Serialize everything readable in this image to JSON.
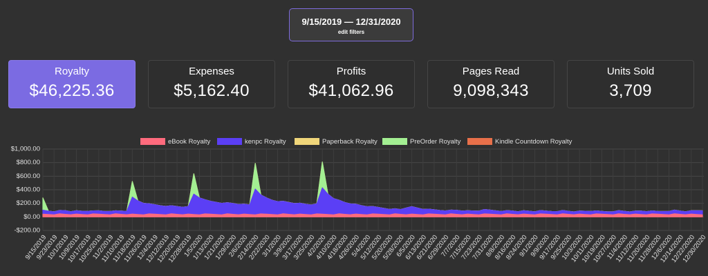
{
  "header": {
    "date_range": "9/15/2019 — 12/31/2020",
    "button": "edit filters"
  },
  "cards": [
    {
      "label": "Royalty",
      "value": "$46,225.36"
    },
    {
      "label": "Expenses",
      "value": "$5,162.40"
    },
    {
      "label": "Profits",
      "value": "$41,062.96"
    },
    {
      "label": "Pages Read",
      "value": "9,098,343"
    },
    {
      "label": "Units Sold",
      "value": "3,709"
    }
  ],
  "chart_data": {
    "type": "stacked-area",
    "grid": true,
    "legend": "top",
    "categories": [
      "9/15/2019",
      null,
      "9/23/2019",
      null,
      "10/1/2019",
      null,
      "10/9/2019",
      null,
      "10/17/2019",
      null,
      "10/25/2019",
      null,
      "11/2/2019",
      null,
      "11/10/2019",
      null,
      "11/18/2019",
      null,
      "11/26/2019",
      null,
      "12/4/2019",
      null,
      "12/12/2019",
      null,
      "12/20/2019",
      null,
      "12/28/2019",
      null,
      "1/5/2020",
      null,
      "1/13/2020",
      null,
      "1/21/2020",
      null,
      "1/29/2020",
      null,
      "2/6/2020",
      null,
      "2/14/2020",
      null,
      "2/22/2020",
      null,
      "3/1/2020",
      null,
      "3/9/2020",
      null,
      "3/17/2020",
      null,
      "3/25/2020",
      null,
      "4/2/2020",
      null,
      "4/10/2020",
      null,
      "4/18/2020",
      null,
      "4/26/2020",
      null,
      "5/4/2020",
      null,
      "5/12/2020",
      null,
      "5/20/2020",
      null,
      "5/28/2020",
      null,
      "6/5/2020",
      null,
      "6/13/2020",
      null,
      "6/21/2020",
      null,
      "6/29/2020",
      null,
      "7/7/2020",
      null,
      "7/15/2020",
      null,
      "7/23/2020",
      null,
      "7/31/2020",
      null,
      "8/8/2020",
      null,
      "8/16/2020",
      null,
      "8/24/2020",
      null,
      "9/1/2020",
      null,
      "9/9/2020",
      null,
      "9/17/2020",
      null,
      "9/25/2020",
      null,
      "10/3/2020",
      null,
      "10/11/2020",
      null,
      "10/19/2020",
      null,
      "10/27/2020",
      null,
      "11/4/2020",
      null,
      "11/12/2020",
      null,
      "11/20/2020",
      null,
      "11/28/2020",
      null,
      "12/6/2020",
      null,
      "12/14/2020",
      null,
      "12/22/2020",
      null,
      "12/30/2020"
    ],
    "ylim": [
      -200,
      1000
    ],
    "yticks": [
      {
        "value": -200,
        "label": "-$200.00"
      },
      {
        "value": 0,
        "label": "$0.00"
      },
      {
        "value": 200,
        "label": "$200.00"
      },
      {
        "value": 400,
        "label": "$400.00"
      },
      {
        "value": 600,
        "label": "$600.00"
      },
      {
        "value": 800,
        "label": "$800.00"
      },
      {
        "value": 1000,
        "label": "$1,000.00"
      }
    ],
    "series": [
      {
        "name": "eBook Royalty",
        "color": "#ff6b7d",
        "values": [
          40,
          35,
          30,
          45,
          38,
          32,
          42,
          36,
          30,
          44,
          40,
          35,
          30,
          45,
          38,
          32,
          42,
          36,
          30,
          44,
          40,
          35,
          30,
          45,
          38,
          32,
          42,
          36,
          30,
          44,
          40,
          35,
          30,
          45,
          38,
          32,
          42,
          36,
          30,
          44,
          40,
          35,
          30,
          45,
          38,
          32,
          42,
          36,
          30,
          44,
          40,
          35,
          30,
          45,
          38,
          32,
          42,
          36,
          30,
          44,
          40,
          35,
          30,
          45,
          38,
          32,
          42,
          36,
          30,
          44,
          40,
          35,
          30,
          45,
          38,
          32,
          42,
          36,
          30,
          44,
          40,
          35,
          30,
          45,
          38,
          32,
          42,
          36,
          30,
          44,
          40,
          35,
          30,
          45,
          38,
          32,
          42,
          36,
          30,
          44,
          40,
          35,
          30,
          45,
          38,
          32,
          42,
          36,
          30,
          44,
          40,
          35,
          30,
          45,
          38,
          32,
          42,
          36,
          30
        ]
      },
      {
        "name": "kenpc Royalty",
        "color": "#5b3ff5",
        "values": [
          60,
          50,
          45,
          50,
          55,
          45,
          50,
          48,
          52,
          45,
          50,
          47,
          50,
          45,
          48,
          50,
          250,
          200,
          170,
          150,
          140,
          130,
          125,
          120,
          115,
          110,
          110,
          300,
          250,
          210,
          190,
          180,
          170,
          165,
          160,
          150,
          145,
          140,
          380,
          280,
          240,
          210,
          195,
          185,
          175,
          165,
          160,
          150,
          145,
          150,
          390,
          300,
          240,
          200,
          175,
          160,
          145,
          130,
          120,
          110,
          100,
          90,
          80,
          75,
          70,
          100,
          110,
          95,
          80,
          70,
          65,
          60,
          58,
          55,
          60,
          55,
          50,
          52,
          55,
          65,
          60,
          55,
          50,
          48,
          50,
          45,
          50,
          48,
          45,
          50,
          47,
          45,
          48,
          50,
          45,
          42,
          45,
          48,
          50,
          45,
          42,
          40,
          45,
          48,
          45,
          42,
          45,
          50,
          48,
          45,
          42,
          45,
          50,
          55,
          48,
          45,
          50,
          55,
          60
        ]
      },
      {
        "name": "Paperback Royalty",
        "color": "#f0d67a",
        "values": [
          0,
          0,
          0,
          0,
          0,
          0,
          0,
          0,
          0,
          0,
          0,
          0,
          0,
          0,
          0,
          0,
          0,
          0,
          0,
          0,
          0,
          0,
          0,
          0,
          0,
          0,
          0,
          0,
          0,
          0,
          0,
          0,
          0,
          0,
          0,
          0,
          0,
          0,
          0,
          0,
          0,
          0,
          0,
          0,
          0,
          0,
          0,
          0,
          0,
          0,
          0,
          0,
          0,
          0,
          0,
          0,
          0,
          0,
          0,
          0,
          0,
          0,
          0,
          0,
          0,
          0,
          0,
          0,
          0,
          0,
          0,
          0,
          0,
          0,
          0,
          0,
          0,
          0,
          0,
          0,
          0,
          0,
          0,
          0,
          0,
          0,
          0,
          0,
          0,
          0,
          0,
          0,
          0,
          0,
          0,
          0,
          0,
          0,
          0,
          0,
          0,
          0,
          0,
          0,
          0,
          0,
          0,
          0,
          0,
          0,
          0,
          0,
          0,
          0,
          0,
          0,
          0,
          0,
          0
        ]
      },
      {
        "name": "PreOrder Royalty",
        "color": "#a3ef92",
        "values": [
          180,
          0,
          0,
          0,
          0,
          0,
          0,
          0,
          0,
          0,
          0,
          0,
          0,
          0,
          0,
          0,
          230,
          0,
          0,
          0,
          0,
          0,
          0,
          0,
          0,
          0,
          0,
          300,
          0,
          0,
          0,
          0,
          0,
          0,
          0,
          0,
          0,
          0,
          380,
          0,
          0,
          0,
          0,
          0,
          0,
          0,
          0,
          0,
          0,
          0,
          380,
          0,
          0,
          0,
          0,
          0,
          0,
          0,
          0,
          0,
          0,
          0,
          0,
          0,
          0,
          0,
          0,
          0,
          0,
          0,
          0,
          0,
          0,
          0,
          0,
          0,
          0,
          0,
          0,
          0,
          0,
          0,
          0,
          0,
          0,
          0,
          0,
          0,
          0,
          0,
          0,
          0,
          0,
          0,
          0,
          0,
          0,
          0,
          0,
          0,
          0,
          0,
          0,
          0,
          0,
          0,
          0,
          0,
          0,
          0,
          0,
          0,
          0,
          0,
          0,
          0,
          0,
          0,
          0
        ]
      },
      {
        "name": "Kindle Countdown Royalty",
        "color": "#e8704a",
        "values": [
          0,
          0,
          0,
          0,
          0,
          0,
          0,
          0,
          0,
          0,
          0,
          0,
          0,
          0,
          0,
          0,
          0,
          0,
          0,
          0,
          0,
          0,
          0,
          0,
          0,
          0,
          0,
          0,
          0,
          0,
          0,
          0,
          0,
          0,
          0,
          0,
          0,
          0,
          0,
          0,
          0,
          0,
          0,
          0,
          0,
          0,
          0,
          0,
          0,
          0,
          0,
          0,
          0,
          0,
          0,
          0,
          0,
          0,
          0,
          0,
          0,
          0,
          0,
          0,
          0,
          0,
          0,
          0,
          0,
          0,
          0,
          0,
          0,
          0,
          0,
          0,
          0,
          0,
          0,
          0,
          0,
          0,
          0,
          0,
          0,
          0,
          0,
          0,
          0,
          0,
          0,
          0,
          0,
          0,
          0,
          0,
          0,
          0,
          0,
          0,
          0,
          0,
          0,
          0,
          0,
          0,
          0,
          0,
          0,
          0,
          0,
          0,
          0,
          0,
          0,
          0,
          0,
          0,
          0
        ]
      }
    ]
  }
}
